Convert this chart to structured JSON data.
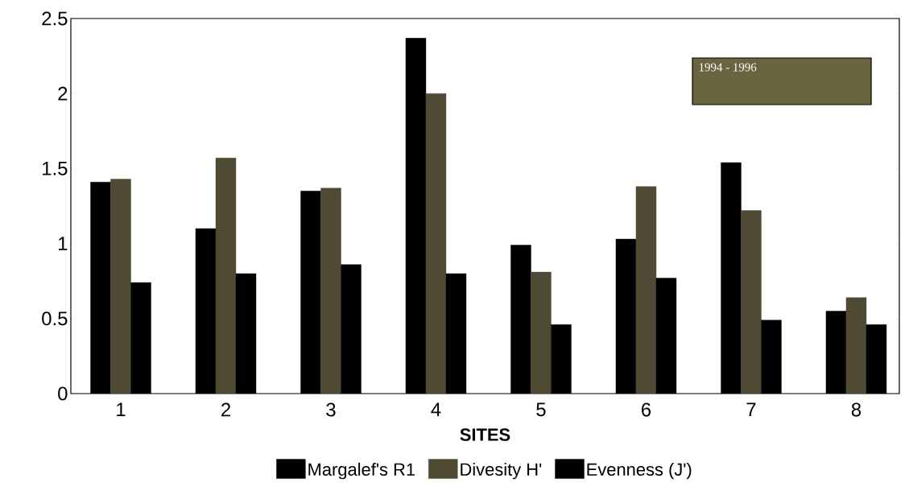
{
  "chart_data": {
    "type": "bar",
    "xlabel": "SITES",
    "categories": [
      "1",
      "2",
      "3",
      "4",
      "5",
      "6",
      "7",
      "8"
    ],
    "series": [
      {
        "name": "Margalef's R1",
        "color": "#000000",
        "values": [
          1.41,
          1.1,
          1.35,
          2.37,
          0.99,
          1.03,
          1.54,
          0.55
        ]
      },
      {
        "name": "Divesity H'",
        "color": "#4f4a33",
        "values": [
          1.43,
          1.57,
          1.37,
          2.0,
          0.81,
          1.38,
          1.22,
          0.64
        ]
      },
      {
        "name": "Evenness (J')",
        "color": "#000000",
        "values": [
          0.74,
          0.8,
          0.86,
          0.8,
          0.46,
          0.77,
          0.49,
          0.46
        ]
      }
    ],
    "ylim": [
      0,
      2.5
    ],
    "yticks": [
      0,
      0.5,
      1,
      1.5,
      2,
      2.5
    ],
    "annotations": [
      "1994 - 1996"
    ],
    "grid": false,
    "legend": "bottom"
  }
}
